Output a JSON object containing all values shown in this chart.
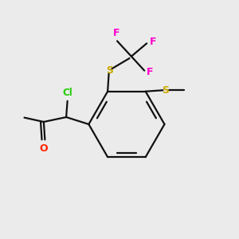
{
  "background_color": "#ebebeb",
  "colors": {
    "bond": "#111111",
    "Cl": "#22cc00",
    "O": "#ff2200",
    "S1": "#ccaa00",
    "S2": "#ccaa00",
    "F": "#ff00cc",
    "background": "#ebebeb"
  },
  "figsize": [
    3.0,
    3.0
  ],
  "dpi": 100
}
